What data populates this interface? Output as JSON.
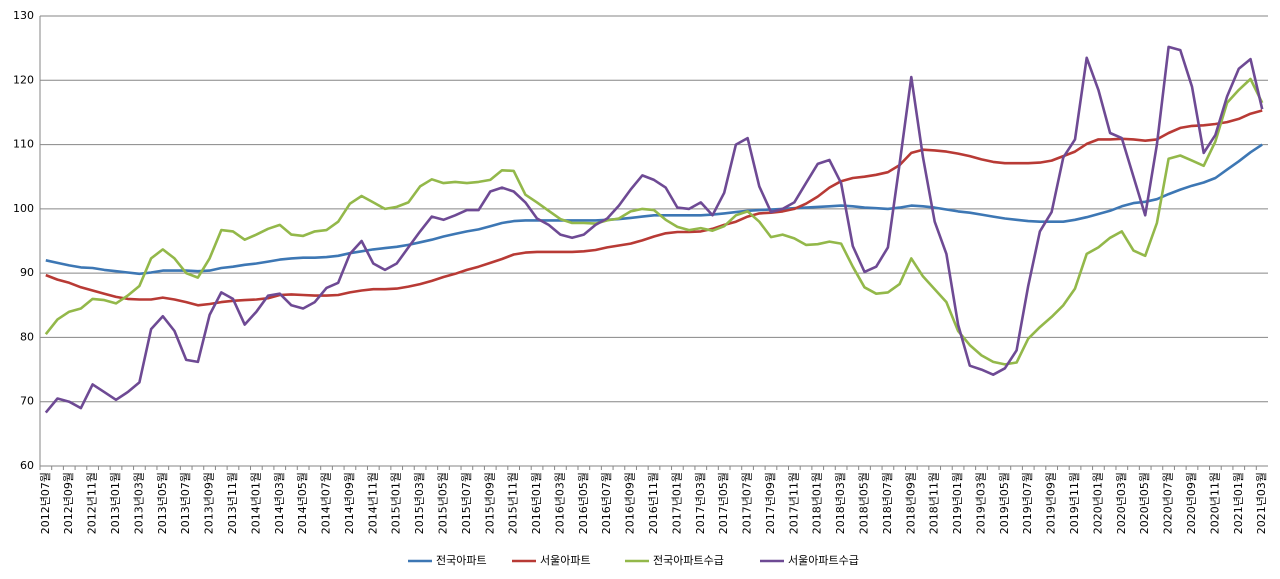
{
  "chart_data": {
    "type": "line",
    "categories": [
      "2012년07월",
      null,
      "2012년09월",
      null,
      "2012년11월",
      null,
      "2013년01월",
      null,
      "2013년03월",
      null,
      "2013년05월",
      null,
      "2013년07월",
      null,
      "2013년09월",
      null,
      "2013년11월",
      null,
      "2014년01월",
      null,
      "2014년03월",
      null,
      "2014년05월",
      null,
      "2014년07월",
      null,
      "2014년09월",
      null,
      "2014년11월",
      null,
      "2015년01월",
      null,
      "2015년03월",
      null,
      "2015년05월",
      null,
      "2015년07월",
      null,
      "2015년09월",
      null,
      "2015년11월",
      null,
      "2016년01월",
      null,
      "2016년03월",
      null,
      "2016년05월",
      null,
      "2016년07월",
      null,
      "2016년09월",
      null,
      "2016년11월",
      null,
      "2017년01월",
      null,
      "2017년03월",
      null,
      "2017년05월",
      null,
      "2017년07월",
      null,
      "2017년09월",
      null,
      "2017년11월",
      null,
      "2018년01월",
      null,
      "2018년03월",
      null,
      "2018년05월",
      null,
      "2018년07월",
      null,
      "2018년09월",
      null,
      "2018년11월",
      null,
      "2019년01월",
      null,
      "2019년03월",
      null,
      "2019년05월",
      null,
      "2019년07월",
      null,
      "2019년09월",
      null,
      "2019년11월",
      null,
      "2020년01월",
      null,
      "2020년03월",
      null,
      "2020년05월",
      null,
      "2020년07월",
      null,
      "2020년09월",
      null,
      "2020년11월",
      null,
      "2021년01월",
      null,
      "2021년03월"
    ],
    "series": [
      {
        "name": "전국아파트",
        "color": "#3d77b4",
        "values": [
          92,
          91.6,
          91.2,
          90.9,
          90.8,
          90.5,
          90.3,
          90.1,
          89.9,
          90.1,
          90.4,
          90.4,
          90.4,
          90.3,
          90.4,
          90.8,
          91,
          91.3,
          91.5,
          91.8,
          92.1,
          92.3,
          92.4,
          92.4,
          92.5,
          92.7,
          93.1,
          93.4,
          93.7,
          93.9,
          94.1,
          94.4,
          94.8,
          95.2,
          95.7,
          96.1,
          96.5,
          96.8,
          97.3,
          97.8,
          98.1,
          98.2,
          98.2,
          98.2,
          98.2,
          98.2,
          98.2,
          98.2,
          98.3,
          98.4,
          98.6,
          98.8,
          99,
          99,
          99,
          99,
          99,
          99.1,
          99.3,
          99.5,
          99.7,
          99.8,
          99.9,
          100,
          100.1,
          100.2,
          100.3,
          100.4,
          100.5,
          100.4,
          100.2,
          100.1,
          100,
          100.2,
          100.5,
          100.4,
          100.2,
          99.9,
          99.6,
          99.4,
          99.1,
          98.8,
          98.5,
          98.3,
          98.1,
          98,
          98,
          98,
          98.3,
          98.7,
          99.2,
          99.7,
          100.4,
          100.9,
          101.1,
          101.5,
          102.3,
          103,
          103.6,
          104.1,
          104.8,
          106.1,
          107.4,
          108.8,
          110
        ]
      },
      {
        "name": "서울아파트",
        "color": "#b83a35",
        "values": [
          89.7,
          89,
          88.5,
          87.8,
          87.3,
          86.8,
          86.3,
          86,
          85.9,
          85.9,
          86.2,
          85.9,
          85.5,
          85,
          85.2,
          85.5,
          85.7,
          85.8,
          85.9,
          86.1,
          86.6,
          86.7,
          86.6,
          86.5,
          86.5,
          86.6,
          87,
          87.3,
          87.5,
          87.5,
          87.6,
          87.9,
          88.3,
          88.8,
          89.4,
          89.9,
          90.5,
          91,
          91.6,
          92.2,
          92.9,
          93.2,
          93.3,
          93.3,
          93.3,
          93.3,
          93.4,
          93.6,
          94,
          94.3,
          94.6,
          95.1,
          95.7,
          96.2,
          96.4,
          96.4,
          96.5,
          96.9,
          97.5,
          98,
          98.8,
          99.3,
          99.4,
          99.6,
          100,
          100.8,
          101.9,
          103.3,
          104.3,
          104.8,
          105,
          105.3,
          105.7,
          106.8,
          108.7,
          109.2,
          109.1,
          108.9,
          108.6,
          108.2,
          107.7,
          107.3,
          107.1,
          107.1,
          107.1,
          107.2,
          107.5,
          108.2,
          108.9,
          110.1,
          110.8,
          110.8,
          110.9,
          110.8,
          110.6,
          110.8,
          111.8,
          112.6,
          112.9,
          113,
          113.2,
          113.5,
          114,
          114.8,
          115.3
        ]
      },
      {
        "name": "전국아파트수급",
        "color": "#93b84a",
        "values": [
          80.5,
          82.8,
          84,
          84.5,
          86,
          85.8,
          85.3,
          86.5,
          88,
          92.3,
          93.7,
          92.3,
          90,
          89.3,
          92.3,
          96.7,
          96.5,
          95.2,
          96,
          96.9,
          97.5,
          96,
          95.8,
          96.5,
          96.7,
          98,
          100.8,
          102,
          101,
          100,
          100.3,
          101,
          103.5,
          104.6,
          104,
          104.2,
          104,
          104.2,
          104.5,
          106,
          105.9,
          102.2,
          101,
          99.7,
          98.4,
          97.8,
          97.8,
          97.7,
          98.2,
          98.5,
          99.6,
          100,
          99.8,
          98.3,
          97.2,
          96.7,
          97,
          96.6,
          97.3,
          99,
          99.6,
          98,
          95.6,
          96,
          95.4,
          94.4,
          94.5,
          94.9,
          94.6,
          91,
          87.8,
          86.8,
          87,
          88.3,
          92.3,
          89.5,
          87.5,
          85.5,
          81,
          78.8,
          77.2,
          76.2,
          75.8,
          76.1,
          79.8,
          81.6,
          83.2,
          85,
          87.6,
          93,
          94,
          95.5,
          96.5,
          93.5,
          92.7,
          97.8,
          107.8,
          108.3,
          107.5,
          106.7,
          110.5,
          116.5,
          118.5,
          120.2,
          116.5
        ]
      },
      {
        "name": "서울아파트수급",
        "color": "#6e4a94",
        "values": [
          68.3,
          70.5,
          70,
          69,
          72.7,
          71.5,
          70.3,
          71.5,
          73,
          81.3,
          83.3,
          81,
          76.5,
          76.2,
          83.5,
          87,
          86,
          82,
          84,
          86.5,
          86.8,
          85,
          84.5,
          85.5,
          87.7,
          88.5,
          93,
          95,
          91.5,
          90.5,
          91.5,
          94,
          96.5,
          98.8,
          98.3,
          99,
          99.8,
          99.8,
          102.7,
          103.3,
          102.7,
          101,
          98.5,
          97.5,
          96,
          95.5,
          96,
          97.5,
          98.5,
          100.5,
          103,
          105.2,
          104.5,
          103.3,
          100.2,
          100,
          101,
          99,
          102.5,
          110,
          111,
          103.5,
          99.5,
          100,
          101,
          104,
          107,
          107.6,
          104,
          94.2,
          90.2,
          91,
          94,
          107,
          120.5,
          108,
          98,
          93,
          82,
          75.6,
          75,
          74.2,
          75.2,
          78,
          88,
          96.5,
          99.5,
          108,
          110.8,
          123.5,
          118.5,
          111.8,
          111,
          105,
          99,
          110,
          125.2,
          124.7,
          119,
          108.7,
          111.5,
          117.5,
          121.8,
          123.3,
          115.5
        ]
      }
    ],
    "ylim": [
      60,
      130
    ],
    "yticks": [
      60,
      70,
      80,
      90,
      100,
      110,
      120,
      130
    ],
    "grid": true,
    "legend": "bottom"
  }
}
